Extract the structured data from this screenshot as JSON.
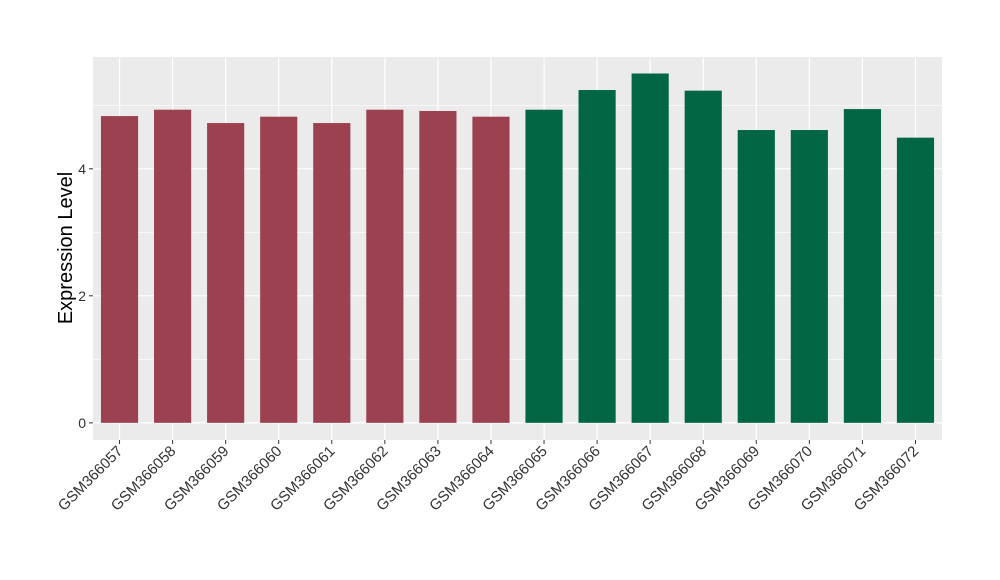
{
  "chart_data": {
    "type": "bar",
    "title": "",
    "xlabel": "",
    "ylabel": "Expression Level",
    "ylim": [
      -0.27,
      5.76
    ],
    "yticks": [
      0,
      2,
      4
    ],
    "grid": true,
    "categories": [
      "GSM366057",
      "GSM366058",
      "GSM366059",
      "GSM366060",
      "GSM366061",
      "GSM366062",
      "GSM366063",
      "GSM366064",
      "GSM366065",
      "GSM366066",
      "GSM366067",
      "GSM366068",
      "GSM366069",
      "GSM366070",
      "GSM366071",
      "GSM366072"
    ],
    "values": [
      4.83,
      4.93,
      4.72,
      4.82,
      4.72,
      4.93,
      4.91,
      4.82,
      4.93,
      5.24,
      5.5,
      5.23,
      4.61,
      4.61,
      4.94,
      4.49
    ],
    "groups": [
      0,
      0,
      0,
      0,
      0,
      0,
      0,
      0,
      1,
      1,
      1,
      1,
      1,
      1,
      1,
      1
    ],
    "colors": [
      "#9b4150",
      "#006644"
    ]
  }
}
